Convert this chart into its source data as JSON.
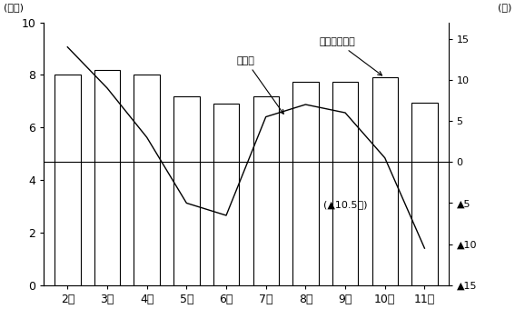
{
  "categories": [
    "2年",
    "3年",
    "4年",
    "5年",
    "6年",
    "7年",
    "8年",
    "9年",
    "10年",
    "11年"
  ],
  "bar_values": [
    8.0,
    8.2,
    8.0,
    7.2,
    6.9,
    7.2,
    7.75,
    7.75,
    7.9,
    6.95
  ],
  "line_values": [
    14.0,
    9.0,
    3.0,
    -5.0,
    -6.5,
    5.5,
    7.0,
    6.0,
    0.5,
    -10.5
  ],
  "bar_color": "#ffffff",
  "bar_edgecolor": "#000000",
  "line_color": "#000000",
  "background_color": "#ffffff",
  "ylabel_left": "(兆円)",
  "ylabel_right": "(％)",
  "yticks_left": [
    0,
    2,
    4,
    6,
    8,
    10
  ],
  "ylim_left": [
    0,
    10
  ],
  "yticks_right_vals": [
    15,
    10,
    5,
    0,
    -5,
    -10,
    -15
  ],
  "ylim_right": [
    -15,
    17
  ],
  "annotation_lease": "リース契約高",
  "annotation_yoy": "前年比",
  "annotation_pct": "(▲10.5％)"
}
